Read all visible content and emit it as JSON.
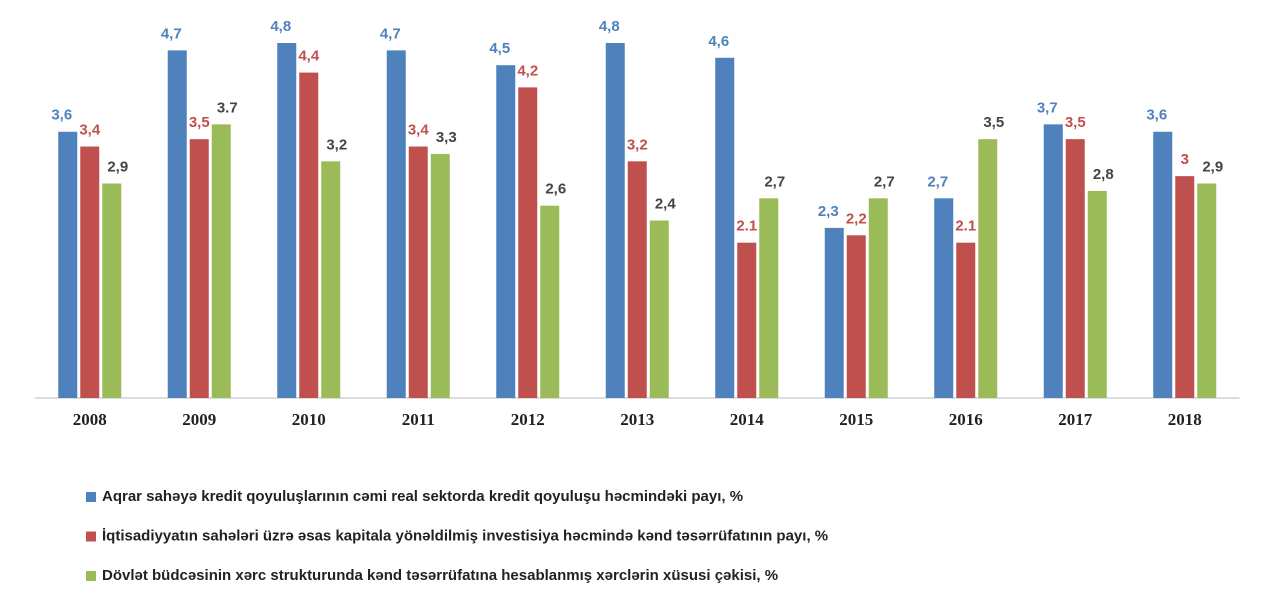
{
  "chart_data": {
    "type": "bar",
    "categories": [
      "2008",
      "2009",
      "2010",
      "2011",
      "2012",
      "2013",
      "2014",
      "2015",
      "2016",
      "2017",
      "2018"
    ],
    "series": [
      {
        "name": "Aqrar sahəyə kredit qoyuluşlarının cəmi real sektorda kredit qoyuluşu həcmindəki payı, %",
        "color": "#4f81bd",
        "values": [
          3.6,
          4.7,
          4.8,
          4.7,
          4.5,
          4.8,
          4.6,
          2.3,
          2.7,
          3.7,
          3.6
        ],
        "value_labels": [
          "3,6",
          "4,7",
          "4,8",
          "4,7",
          "4,5",
          "4,8",
          "4,6",
          "2,3",
          "2,7",
          "3,7",
          "3,6"
        ]
      },
      {
        "name": "İqtisadiyyatın sahələri üzrə əsas kapitala yönəldilmiş investisiya həcmində kənd təsərrüfatının payı, %",
        "color": "#c0504d",
        "values": [
          3.4,
          3.5,
          4.4,
          3.4,
          4.2,
          3.2,
          2.1,
          2.2,
          2.1,
          3.5,
          3
        ],
        "value_labels": [
          "3,4",
          "3,5",
          "4,4",
          "3,4",
          "4,2",
          "3,2",
          "2.1",
          "2,2",
          "2.1",
          "3,5",
          "3"
        ]
      },
      {
        "name": "Dövlət büdcəsinin xərc strukturunda kənd təsərrüfatına hesablanmış xərclərin xüsusi çəkisi, %",
        "color": "#9bbb59",
        "values": [
          2.9,
          3.7,
          3.2,
          3.3,
          2.6,
          2.4,
          2.7,
          2.7,
          3.5,
          2.8,
          2.9
        ],
        "value_labels": [
          "2,9",
          "3.7",
          "3,2",
          "3,3",
          "2,6",
          "2,4",
          "2,7",
          "2,7",
          "3,5",
          "2,8",
          "2,9"
        ]
      }
    ]
  }
}
